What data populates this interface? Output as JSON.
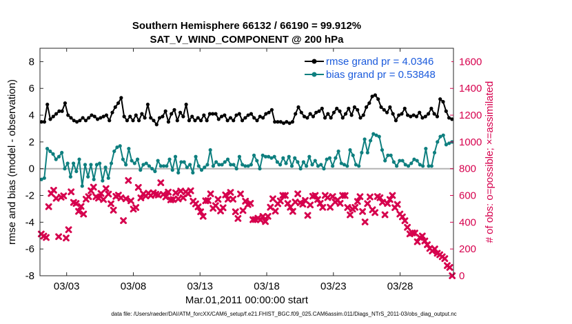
{
  "figure": {
    "title_line1": "Southern Hemisphere 66132 / 66190 = 99.912%",
    "title_line2": "SAT_V_WIND_COMPONENT @ 200 hPa",
    "xlabel": "Mar.01,2011 00:00:00 start",
    "ylabel_left": "rmse and bias (model - observation)",
    "ylabel_right": "# of obs: o=possible; ×=assimilated",
    "footer": "data file: /Users/raeder/DAI/ATM_forcXX/CAM6_setup/f.e21.FHIST_BGC.f09_025.CAM6assim.011/Diags_NTrS_2011-03/obs_diag_output.nc"
  },
  "colors": {
    "rmse": "#000000",
    "bias": "#0e7f7f",
    "obs": "#d6004d",
    "zero_line": "#b3b3b3",
    "legend_text": "#1a5adc"
  },
  "chart_data": {
    "type": "line",
    "x_ticks": [
      "03/03",
      "03/08",
      "03/13",
      "03/18",
      "03/23",
      "03/28"
    ],
    "x_tick_days": [
      3,
      8,
      13,
      18,
      23,
      28
    ],
    "xlim_days": [
      1,
      32
    ],
    "ylim_left": [
      -8,
      9
    ],
    "y_ticks_left": [
      -8,
      -6,
      -4,
      -2,
      0,
      2,
      4,
      6,
      8
    ],
    "ylim_right": [
      0,
      1700
    ],
    "y_ticks_right": [
      0,
      200,
      400,
      600,
      800,
      1000,
      1200,
      1400,
      1600
    ],
    "legend_position": "top-right",
    "grid": false,
    "zero_line": true,
    "series": [
      {
        "name": "rmse grand pr = 4.0346",
        "axis": "left",
        "marker": "circle",
        "values": [
          3.5,
          3.5,
          4.8,
          3.7,
          3.9,
          4.1,
          4.3,
          4.3,
          4.9,
          4.0,
          3.8,
          3.6,
          3.5,
          3.6,
          3.8,
          3.6,
          3.8,
          4.0,
          3.9,
          3.7,
          3.8,
          3.9,
          4.0,
          3.6,
          4.2,
          4.6,
          4.9,
          5.3,
          3.9,
          3.6,
          3.9,
          3.6,
          4.0,
          3.6,
          4.1,
          3.8,
          4.8,
          3.8,
          3.6,
          3.3,
          3.8,
          3.9,
          4.3,
          3.5,
          4.1,
          4.4,
          3.6,
          4.2,
          3.9,
          4.8,
          3.6,
          3.9,
          3.6,
          3.8,
          3.6,
          4.0,
          3.6,
          4.1,
          4.1,
          4.1,
          3.7,
          3.9,
          4.0,
          3.6,
          3.8,
          3.6,
          4.0,
          4.1,
          3.6,
          3.8,
          4.0,
          4.1,
          3.8,
          3.6,
          3.9,
          3.8,
          4.1,
          4.2,
          4.4,
          3.5,
          3.5,
          3.5,
          3.4,
          3.5,
          3.4,
          3.5,
          4.1,
          4.6,
          4.2,
          3.9,
          3.8,
          4.1,
          3.9,
          4.2,
          4.3,
          4.5,
          3.8,
          4.1,
          3.8,
          4.2,
          4.5,
          4.3,
          3.8,
          4.1,
          4.5,
          4.0,
          4.6,
          4.4,
          3.8,
          4.0,
          4.6,
          4.9,
          5.4,
          5.5,
          5.2,
          4.6,
          4.4,
          4.2,
          4.6,
          4.1,
          3.6,
          4.0,
          4.1,
          4.5,
          4.0,
          3.9,
          4.0,
          3.9,
          4.2,
          3.8,
          3.9,
          4.1,
          4.5,
          4.1,
          3.9,
          5.2,
          5.0,
          4.3,
          3.8,
          3.7
        ]
      },
      {
        "name": "bias grand pr = 0.53848",
        "axis": "left",
        "marker": "circle",
        "values": [
          -0.8,
          -0.7,
          1.5,
          1.3,
          1.1,
          0.7,
          0.9,
          1.2,
          0.0,
          0.4,
          -0.6,
          0.4,
          -0.2,
          0.7,
          -1.3,
          0.3,
          -0.6,
          0.3,
          -0.8,
          0.3,
          0.4,
          -0.9,
          0.1,
          -0.7,
          0.4,
          1.3,
          1.6,
          1.7,
          0.7,
          0.3,
          1.5,
          0.6,
          0.4,
          0.7,
          -0.1,
          0.3,
          0.4,
          0.2,
          0.0,
          -0.2,
          0.6,
          0.2,
          0.2,
          0.2,
          0.7,
          -0.1,
          0.9,
          -0.3,
          0.5,
          0.5,
          0.1,
          0.3,
          -0.3,
          0.9,
          0.2,
          -0.1,
          0.1,
          0.3,
          1.4,
          0.2,
          0.5,
          0.3,
          0.3,
          0.5,
          0.7,
          0.3,
          0.3,
          0.0,
          0.9,
          0.3,
          0.2,
          0.2,
          0.3,
          1.0,
          0.6,
          0.0,
          1.0,
          0.9,
          0.9,
          0.8,
          0.9,
          0.5,
          0.3,
          0.8,
          0.4,
          0.9,
          0.2,
          0.8,
          0.5,
          0.0,
          0.5,
          0.2,
          0.9,
          0.3,
          0.6,
          0.2,
          0.3,
          0.0,
          0.7,
          0.8,
          0.2,
          0.8,
          1.3,
          0.4,
          0.3,
          0.2,
          1.4,
          1.0,
          0.3,
          0.2,
          1.2,
          2.2,
          1.2,
          2.1,
          2.6,
          2.5,
          2.4,
          1.4,
          0.6,
          1.0,
          1.0,
          0.5,
          0.2,
          0.6,
          0.6,
          0.3,
          0.2,
          0.4,
          0.7,
          0.6,
          0.3,
          0.2,
          1.5,
          0.2,
          0.2,
          1.2,
          2.0,
          2.4,
          2.5,
          1.8,
          1.9,
          2.0
        ]
      },
      {
        "name": "obs assimilated",
        "axis": "right",
        "marker": "x",
        "values": [
          312,
          296,
          286,
          516,
          615,
          639,
          579,
          292,
          587,
          597,
          282,
          344,
          627,
          548,
          540,
          481,
          518,
          461,
          572,
          591,
          635,
          662,
          590,
          580,
          615,
          570,
          651,
          610,
          538,
          490,
          593,
          602,
          582,
          412,
          575,
          712,
          560,
          498,
          510,
          660,
          582,
          612,
          596,
          617,
          600,
          620,
          609,
          603,
          695,
          608,
          589,
          625,
          567,
          570,
          620,
          574,
          633,
          583,
          627,
          612,
          635,
          557,
          537,
          515,
          478,
          444,
          560,
          562,
          612,
          504,
          524,
          571,
          484,
          508,
          604,
          572,
          623,
          572,
          478,
          428,
          611,
          487,
          557,
          532,
          541,
          419,
          420,
          430,
          418,
          443,
          405,
          444,
          512,
          575,
          483,
          538,
          559,
          600,
          600,
          540,
          512,
          481,
          551,
          612,
          545,
          535,
          563,
          451,
          529,
          594,
          600,
          570,
          541,
          511,
          600,
          584,
          512,
          592,
          551,
          566,
          541,
          600,
          599,
          510,
          455,
          498,
          511,
          555,
          591,
          480,
          402,
          539,
          589,
          493,
          472,
          592,
          583,
          549,
          456,
          540,
          570,
          600,
          509,
          533,
          461,
          440,
          411,
          362,
          313,
          320,
          319,
          254,
          286,
          297,
          260,
          232,
          204,
          185,
          200,
          168,
          157,
          142,
          128,
          76,
          62,
          0
        ]
      },
      {
        "name": "obs possible",
        "axis": "right",
        "marker": "circle-open",
        "values": []
      }
    ]
  }
}
